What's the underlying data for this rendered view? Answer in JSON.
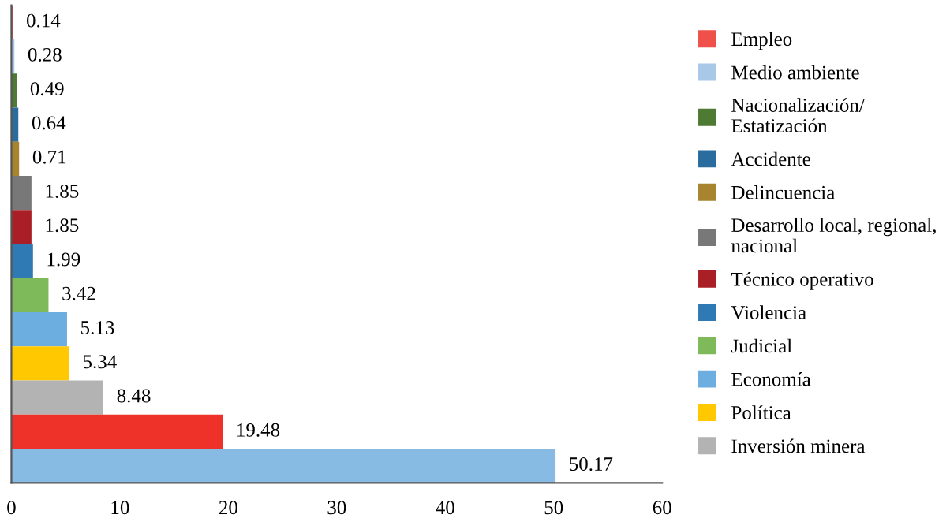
{
  "chart_data": {
    "type": "bar",
    "orientation": "horizontal",
    "data_labels": true,
    "legend": "right",
    "grid": false,
    "categories": [
      null,
      null,
      null,
      null,
      null,
      null,
      null,
      null,
      null,
      null,
      null,
      null,
      null,
      null
    ],
    "xlim": [
      0,
      60
    ],
    "xticks": [
      0,
      10,
      20,
      30,
      40,
      50,
      60
    ],
    "series": [
      {
        "name": "Empleo",
        "color": "#f0504a",
        "values": [
          0.14,
          null,
          null,
          null,
          null,
          null,
          null,
          null,
          null,
          null,
          null,
          null,
          null,
          null
        ]
      },
      {
        "name": "Medio ambiente",
        "color": "#a8c8e8",
        "values": [
          null,
          0.28,
          null,
          null,
          null,
          null,
          null,
          null,
          null,
          null,
          null,
          null,
          null,
          null
        ]
      },
      {
        "name": "Nacionalización/\nEstatización",
        "color": "#4e7a34",
        "values": [
          null,
          null,
          0.49,
          null,
          null,
          null,
          null,
          null,
          null,
          null,
          null,
          null,
          null,
          null
        ]
      },
      {
        "name": "Accidente",
        "color": "#2b6c9e",
        "values": [
          null,
          null,
          null,
          0.64,
          null,
          null,
          null,
          null,
          null,
          null,
          null,
          null,
          null,
          null
        ]
      },
      {
        "name": "Delincuencia",
        "color": "#a88430",
        "values": [
          null,
          null,
          null,
          null,
          0.71,
          null,
          null,
          null,
          null,
          null,
          null,
          null,
          null,
          null
        ]
      },
      {
        "name": "Desarrollo local, regional,\nnacional",
        "color": "#787878",
        "values": [
          null,
          null,
          null,
          null,
          null,
          1.85,
          null,
          null,
          null,
          null,
          null,
          null,
          null,
          null
        ]
      },
      {
        "name": "Técnico operativo",
        "color": "#aa1f26",
        "values": [
          null,
          null,
          null,
          null,
          null,
          null,
          1.85,
          null,
          null,
          null,
          null,
          null,
          null,
          null
        ]
      },
      {
        "name": "Violencia",
        "color": "#2f7ab4",
        "values": [
          null,
          null,
          null,
          null,
          null,
          null,
          null,
          1.99,
          null,
          null,
          null,
          null,
          null,
          null
        ]
      },
      {
        "name": "Judicial",
        "color": "#7fba5a",
        "values": [
          null,
          null,
          null,
          null,
          null,
          null,
          null,
          null,
          3.42,
          null,
          null,
          null,
          null,
          null
        ]
      },
      {
        "name": "Economía",
        "color": "#6caee0",
        "values": [
          null,
          null,
          null,
          null,
          null,
          null,
          null,
          null,
          null,
          5.13,
          null,
          null,
          null,
          null
        ]
      },
      {
        "name": "Política",
        "color": "#ffc800",
        "values": [
          null,
          null,
          null,
          null,
          null,
          null,
          null,
          null,
          null,
          null,
          5.34,
          null,
          null,
          null
        ]
      },
      {
        "name": "Inversión minera",
        "color": "#b3b3b3",
        "values": [
          null,
          null,
          null,
          null,
          null,
          null,
          null,
          null,
          null,
          null,
          null,
          8.48,
          null,
          null
        ]
      },
      {
        "color": "#ee3129",
        "values": [
          null,
          null,
          null,
          null,
          null,
          null,
          null,
          null,
          null,
          null,
          null,
          null,
          19.48,
          null
        ]
      },
      {
        "color": "#88bbe4",
        "values": [
          null,
          null,
          null,
          null,
          null,
          null,
          null,
          null,
          null,
          null,
          null,
          null,
          null,
          50.17
        ]
      }
    ]
  }
}
